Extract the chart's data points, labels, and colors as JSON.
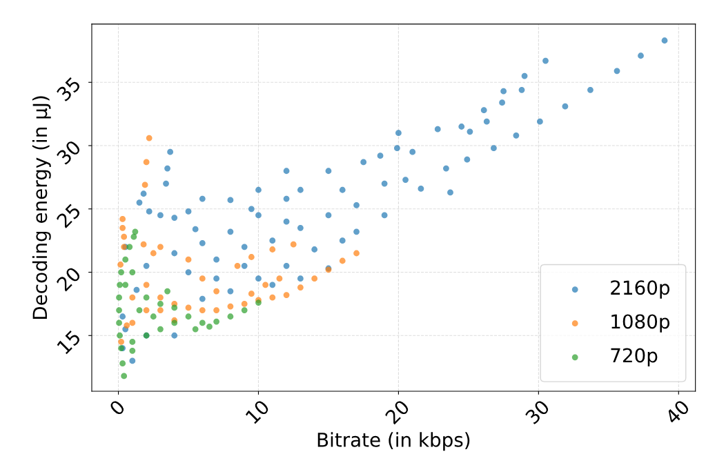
{
  "chart_data": {
    "type": "scatter",
    "xlabel": "Bitrate (in kbps)",
    "ylabel": "Decoding energy (in μJ)",
    "xlim": [
      -1.9,
      41.2
    ],
    "ylim": [
      10.6,
      39.6
    ],
    "xticks": [
      0,
      10,
      20,
      30,
      40
    ],
    "yticks": [
      15,
      20,
      25,
      30,
      35
    ],
    "grid": true,
    "legend": "bottom right",
    "marker": "circle",
    "series": [
      {
        "name": "2160p",
        "color": "#1f77b4",
        "x": [
          39,
          37.3,
          35.6,
          33.7,
          30.5,
          29,
          28.8,
          27.5,
          27.4,
          31.9,
          30.1,
          28.4,
          26.8,
          26.1,
          26.3,
          25.1,
          24.5,
          22.8,
          20,
          24.9,
          23.4,
          21.6,
          23.7,
          20.5,
          19.9,
          18.7,
          17.5,
          15,
          13,
          12,
          10,
          8,
          6,
          4,
          2,
          1.3,
          0.5,
          0.3,
          1,
          2,
          4,
          6,
          8,
          10,
          12,
          14,
          16,
          17,
          15,
          13,
          11,
          3.7,
          3.5,
          3.4,
          1.5,
          1.8,
          2.2,
          3,
          4,
          5,
          6,
          8,
          10,
          12,
          9.5,
          5.5,
          0.3,
          0.5,
          5,
          7,
          9,
          11,
          13,
          15,
          17,
          19,
          21,
          19,
          16,
          12,
          7,
          9
        ],
        "values": [
          38.3,
          37.1,
          35.9,
          34.4,
          36.7,
          35.5,
          34.4,
          34.3,
          33.4,
          33.1,
          31.9,
          30.8,
          29.8,
          32.8,
          31.9,
          31.1,
          31.5,
          31.3,
          31,
          28.9,
          28.2,
          26.6,
          26.3,
          27.3,
          29.8,
          29.2,
          28.7,
          28,
          26.5,
          25.8,
          24.5,
          23.2,
          22.3,
          21.5,
          20.5,
          18.6,
          15.5,
          14,
          13,
          15,
          15,
          17.9,
          18.5,
          19.5,
          20.5,
          21.8,
          22.5,
          23.2,
          20.3,
          19.5,
          19,
          29.5,
          28.2,
          27,
          25.5,
          26.2,
          24.8,
          24.5,
          24.3,
          24.8,
          25.8,
          25.7,
          26.5,
          28,
          25,
          23.4,
          16.5,
          22,
          20,
          21,
          22,
          22.5,
          23.5,
          24.5,
          25.3,
          27,
          29.5,
          24.5,
          26.5,
          24,
          19.5,
          20.5
        ]
      },
      {
        "name": "1080p",
        "color": "#ff7f0e",
        "x": [
          2.2,
          2,
          1.9,
          0.3,
          0.3,
          0.4,
          0.4,
          0.15,
          0.6,
          0.2,
          1,
          2,
          3,
          4,
          5,
          6,
          7,
          8,
          9,
          10,
          11,
          12,
          13,
          14,
          15,
          16,
          17,
          11.5,
          10.5,
          9.5,
          8.5,
          9.5,
          11,
          12.5,
          5,
          3,
          2.5,
          1.8,
          3,
          4,
          2,
          1,
          7,
          6
        ],
        "values": [
          30.6,
          28.7,
          26.9,
          24.2,
          23.5,
          22.8,
          22,
          20.6,
          15.8,
          14.5,
          18,
          19,
          18,
          17.5,
          17.2,
          17,
          17,
          17.3,
          17.5,
          17.8,
          18,
          18.2,
          18.8,
          19.5,
          20.2,
          20.9,
          21.5,
          19.5,
          19,
          18.3,
          20.5,
          21.2,
          21.8,
          22.2,
          21,
          22,
          21.5,
          22.2,
          17,
          16.2,
          17,
          16,
          18.5,
          19.5
        ]
      },
      {
        "name": "720p",
        "color": "#2ca02c",
        "x": [
          0.4,
          0.3,
          0.2,
          0.1,
          0.05,
          0.05,
          0.05,
          0.1,
          0.2,
          0.5,
          0.8,
          1.1,
          1.2,
          1,
          2,
          3,
          4,
          5,
          6,
          7,
          8,
          9,
          10,
          3,
          2,
          1,
          4,
          5.5,
          6.5,
          0.5,
          1.5,
          2.5,
          3.5,
          1
        ],
        "values": [
          11.8,
          12.8,
          14,
          15,
          16,
          17,
          18,
          19,
          20,
          21,
          22,
          22.8,
          23.2,
          20,
          18,
          17.5,
          17.2,
          16.5,
          16,
          16.1,
          16.5,
          17,
          17.6,
          15.5,
          15,
          14.5,
          16,
          15.5,
          15.7,
          19,
          17,
          16.5,
          18.5,
          13.8
        ]
      }
    ]
  }
}
